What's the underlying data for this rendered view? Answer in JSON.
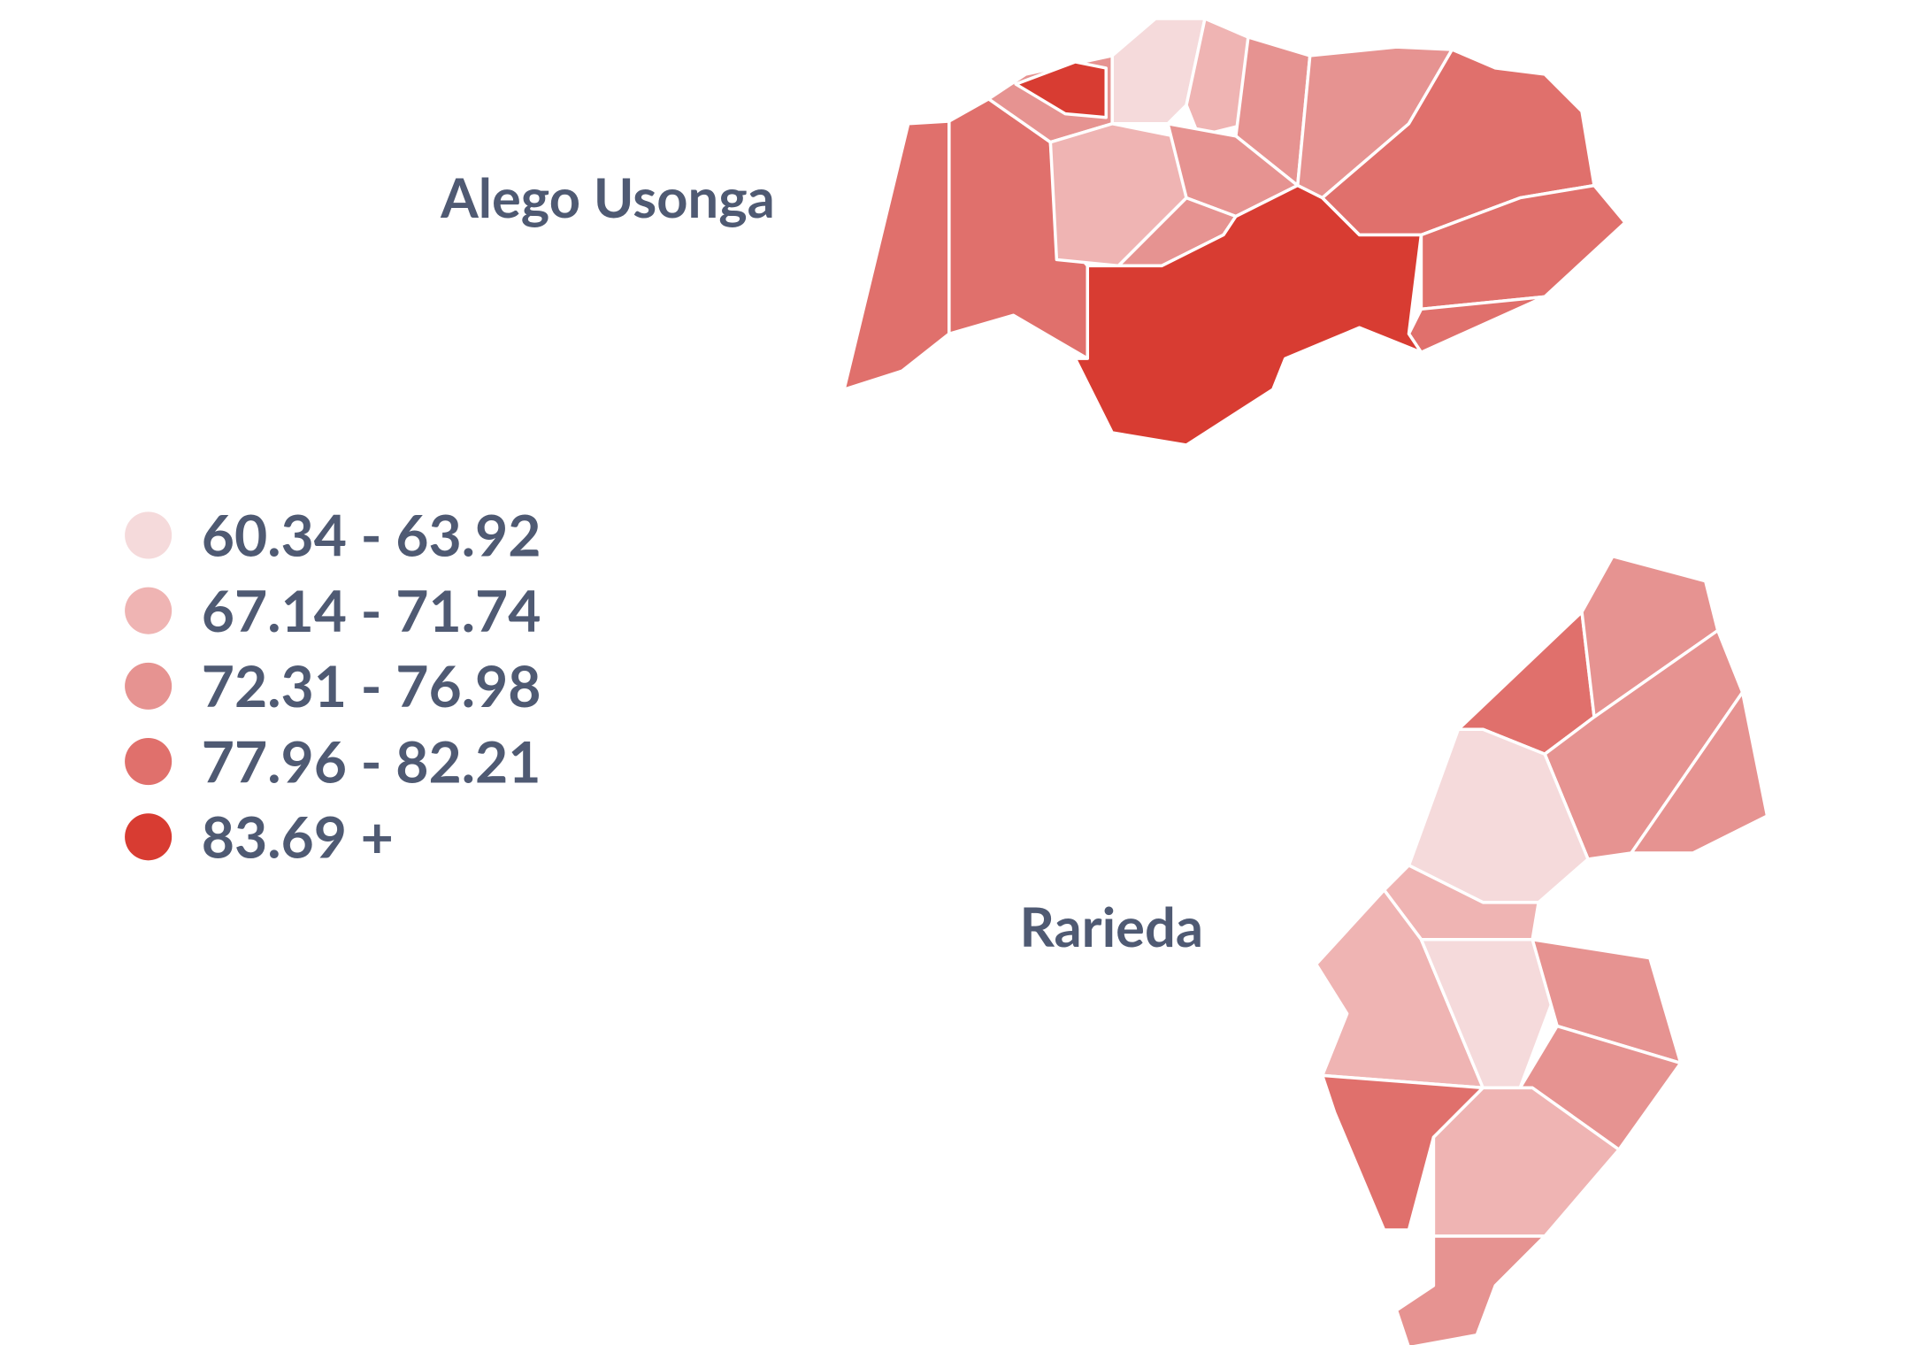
{
  "map": {
    "labels": [
      "Alego Usonga",
      "Rarieda"
    ],
    "legend": {
      "items": [
        {
          "label": "60.34 - 63.92",
          "color": "#f5dadb"
        },
        {
          "label": "67.14 - 71.74",
          "color": "#efb4b3"
        },
        {
          "label": "72.31 - 76.98",
          "color": "#e69391"
        },
        {
          "label": "77.96 - 82.21",
          "color": "#e0706c"
        },
        {
          "label": "83.69 +",
          "color": "#d83c32"
        }
      ]
    }
  }
}
